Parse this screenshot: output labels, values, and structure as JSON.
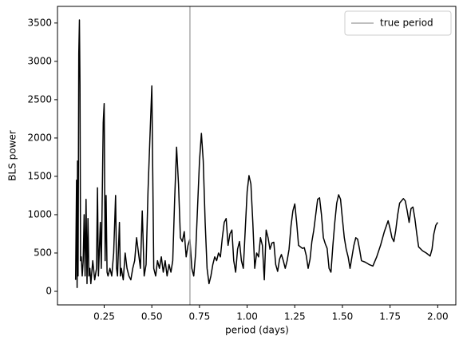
{
  "chart_data": {
    "type": "line",
    "xlabel": "period (days)",
    "ylabel": "BLS power",
    "x": [
      0.1,
      0.105,
      0.108,
      0.11,
      0.113,
      0.117,
      0.12,
      0.123,
      0.126,
      0.13,
      0.135,
      0.14,
      0.145,
      0.15,
      0.155,
      0.16,
      0.165,
      0.17,
      0.175,
      0.18,
      0.19,
      0.2,
      0.21,
      0.215,
      0.22,
      0.23,
      0.235,
      0.245,
      0.25,
      0.255,
      0.26,
      0.265,
      0.27,
      0.28,
      0.29,
      0.3,
      0.31,
      0.315,
      0.32,
      0.33,
      0.335,
      0.34,
      0.35,
      0.36,
      0.37,
      0.38,
      0.39,
      0.4,
      0.41,
      0.42,
      0.43,
      0.44,
      0.45,
      0.46,
      0.47,
      0.48,
      0.49,
      0.5,
      0.505,
      0.51,
      0.52,
      0.53,
      0.54,
      0.55,
      0.56,
      0.57,
      0.58,
      0.59,
      0.6,
      0.61,
      0.62,
      0.63,
      0.64,
      0.65,
      0.66,
      0.67,
      0.68,
      0.69,
      0.7,
      0.71,
      0.72,
      0.73,
      0.74,
      0.75,
      0.76,
      0.77,
      0.78,
      0.79,
      0.8,
      0.81,
      0.82,
      0.83,
      0.84,
      0.85,
      0.86,
      0.87,
      0.88,
      0.89,
      0.9,
      0.91,
      0.92,
      0.93,
      0.94,
      0.95,
      0.96,
      0.97,
      0.98,
      0.99,
      1.0,
      1.01,
      1.02,
      1.03,
      1.04,
      1.05,
      1.06,
      1.07,
      1.08,
      1.09,
      1.1,
      1.11,
      1.12,
      1.13,
      1.14,
      1.15,
      1.16,
      1.17,
      1.18,
      1.19,
      1.2,
      1.21,
      1.22,
      1.23,
      1.24,
      1.25,
      1.26,
      1.27,
      1.28,
      1.29,
      1.3,
      1.31,
      1.32,
      1.33,
      1.34,
      1.35,
      1.36,
      1.37,
      1.38,
      1.39,
      1.4,
      1.41,
      1.42,
      1.43,
      1.44,
      1.45,
      1.46,
      1.47,
      1.48,
      1.49,
      1.5,
      1.51,
      1.52,
      1.53,
      1.54,
      1.55,
      1.56,
      1.57,
      1.58,
      1.59,
      1.6,
      1.62,
      1.64,
      1.66,
      1.68,
      1.7,
      1.72,
      1.74,
      1.75,
      1.76,
      1.77,
      1.78,
      1.79,
      1.8,
      1.82,
      1.83,
      1.84,
      1.85,
      1.86,
      1.87,
      1.88,
      1.89,
      1.9,
      1.92,
      1.94,
      1.96,
      1.97,
      1.98,
      1.99,
      2.0
    ],
    "series": [
      {
        "color": "#000000",
        "values": [
          150,
          1450,
          50,
          1700,
          200,
          3100,
          3540,
          2700,
          400,
          450,
          200,
          400,
          1000,
          200,
          1200,
          100,
          950,
          200,
          300,
          100,
          400,
          150,
          300,
          1350,
          200,
          900,
          300,
          2200,
          2450,
          400,
          1250,
          250,
          200,
          300,
          200,
          500,
          1250,
          300,
          200,
          900,
          200,
          300,
          150,
          500,
          300,
          200,
          150,
          300,
          400,
          700,
          500,
          300,
          1050,
          200,
          350,
          1300,
          2000,
          2680,
          1500,
          300,
          200,
          400,
          300,
          450,
          250,
          400,
          200,
          350,
          250,
          400,
          1200,
          1880,
          1400,
          700,
          650,
          780,
          450,
          600,
          680,
          300,
          200,
          500,
          1100,
          1700,
          2060,
          1700,
          900,
          300,
          100,
          200,
          350,
          450,
          400,
          500,
          450,
          700,
          900,
          950,
          600,
          750,
          800,
          400,
          250,
          550,
          650,
          400,
          300,
          800,
          1300,
          1510,
          1400,
          900,
          300,
          500,
          450,
          700,
          600,
          150,
          800,
          700,
          550,
          630,
          640,
          350,
          260,
          420,
          480,
          400,
          300,
          400,
          550,
          850,
          1050,
          1140,
          900,
          600,
          580,
          560,
          570,
          470,
          300,
          420,
          650,
          800,
          1000,
          1200,
          1220,
          1000,
          700,
          620,
          560,
          300,
          250,
          600,
          900,
          1150,
          1260,
          1200,
          950,
          700,
          550,
          450,
          300,
          450,
          600,
          700,
          680,
          550,
          400,
          380,
          350,
          330,
          450,
          600,
          780,
          920,
          820,
          700,
          650,
          800,
          1000,
          1150,
          1210,
          1180,
          1050,
          900,
          1080,
          1100,
          950,
          750,
          580,
          530,
          500,
          460,
          550,
          750,
          860,
          900
        ]
      }
    ],
    "vlines": [
      {
        "x": 0.7,
        "label": "true period",
        "color": "#aaaaaa"
      }
    ],
    "xlim": [
      0.005,
      2.095
    ],
    "ylim": [
      -177,
      3717
    ],
    "xticks": [
      {
        "value": 0.25,
        "label": "0.25"
      },
      {
        "value": 0.5,
        "label": "0.50"
      },
      {
        "value": 0.75,
        "label": "0.75"
      },
      {
        "value": 1.0,
        "label": "1.00"
      },
      {
        "value": 1.25,
        "label": "1.25"
      },
      {
        "value": 1.5,
        "label": "1.50"
      },
      {
        "value": 1.75,
        "label": "1.75"
      },
      {
        "value": 2.0,
        "label": "2.00"
      }
    ],
    "yticks": [
      0,
      500,
      1000,
      1500,
      2000,
      2500,
      3000,
      3500
    ],
    "legend": "upper right"
  }
}
